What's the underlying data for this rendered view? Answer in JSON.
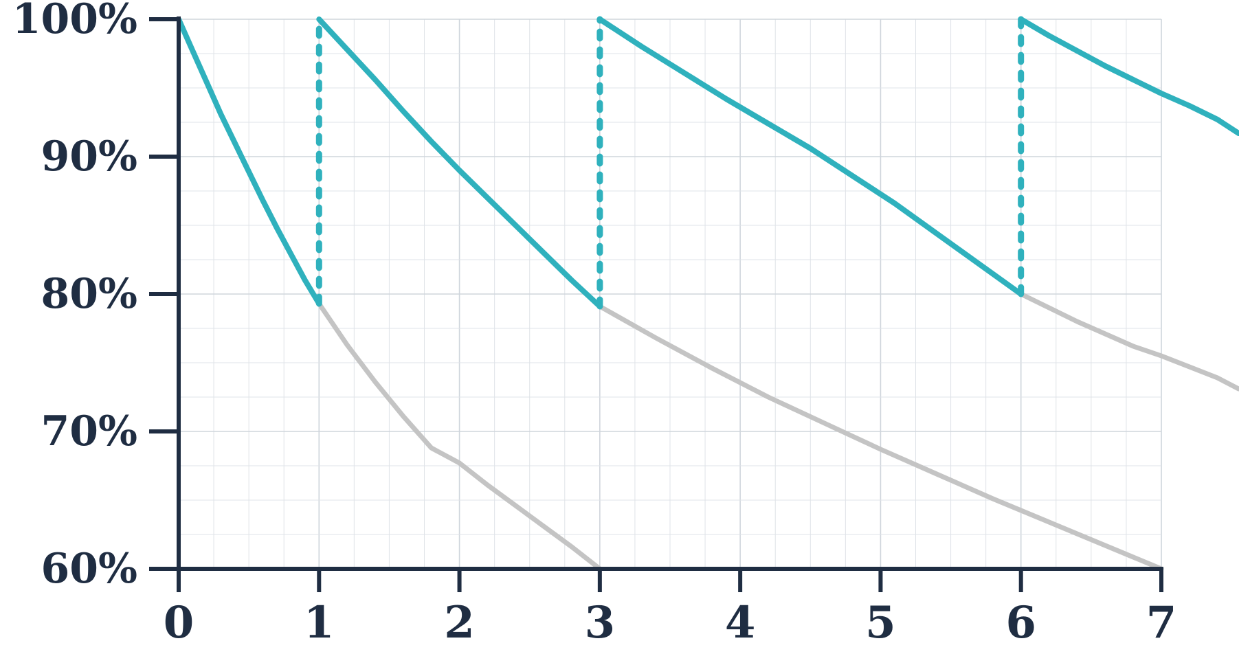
{
  "chart_data": {
    "type": "line",
    "title": "",
    "xlabel": "",
    "ylabel": "",
    "xlim": [
      0,
      7
    ],
    "ylim": [
      60,
      100
    ],
    "x_ticks": [
      0,
      1,
      2,
      3,
      4,
      5,
      6,
      7
    ],
    "x_tick_labels": [
      "0",
      "1",
      "2",
      "3",
      "4",
      "5",
      "6",
      "7"
    ],
    "y_ticks": [
      60,
      70,
      80,
      90,
      100
    ],
    "y_tick_labels": [
      "60%",
      "70%",
      "80%",
      "90%",
      "100%"
    ],
    "grid": true,
    "colors": {
      "active": "#2fb1bd",
      "decay": "#c4c4c4",
      "axis": "#1f2d42",
      "grid": "#dfe3e8"
    },
    "series": [
      {
        "style": "solid",
        "color": "#2fb1bd",
        "segments": [
          {
            "x": [
              0,
              0.1,
              0.2,
              0.3,
              0.4,
              0.5,
              0.6,
              0.7,
              0.8,
              0.9,
              1.0
            ],
            "y": [
              100,
              97.7,
              95.4,
              93.1,
              91.0,
              88.9,
              86.8,
              84.8,
              82.9,
              81.0,
              79.3
            ]
          },
          {
            "x": [
              1.0,
              1.2,
              1.4,
              1.6,
              1.8,
              2.0,
              2.2,
              2.4,
              2.6,
              2.8,
              3.0
            ],
            "y": [
              100,
              97.8,
              95.6,
              93.3,
              91.1,
              89.0,
              87.0,
              85.0,
              83.0,
              81.0,
              79.1
            ]
          },
          {
            "x": [
              3.0,
              3.3,
              3.6,
              3.9,
              4.2,
              4.5,
              4.8,
              5.1,
              5.4,
              5.7,
              6.0
            ],
            "y": [
              100,
              98.0,
              96.1,
              94.2,
              92.4,
              90.6,
              88.6,
              86.6,
              84.4,
              82.2,
              80.0
            ]
          },
          {
            "x": [
              6.0,
              6.2,
              6.4,
              6.6,
              6.8,
              7.0,
              7.2,
              7.4,
              7.55
            ],
            "y": [
              100,
              98.8,
              97.7,
              96.6,
              95.6,
              94.6,
              93.7,
              92.7,
              91.7
            ]
          }
        ]
      },
      {
        "style": "solid",
        "color": "#c4c4c4",
        "segments": [
          {
            "x": [
              1.0,
              1.2,
              1.4,
              1.6,
              1.8,
              2.0,
              2.2,
              2.4,
              2.6,
              2.8,
              3.0
            ],
            "y": [
              79.3,
              76.3,
              73.6,
              71.1,
              68.8,
              67.7,
              66.1,
              64.6,
              63.1,
              61.6,
              60.0
            ]
          },
          {
            "x": [
              3.0,
              3.4,
              3.8,
              4.2,
              4.6,
              5.0,
              5.4,
              5.8,
              6.2,
              6.6,
              7.0
            ],
            "y": [
              79.1,
              76.8,
              74.6,
              72.5,
              70.6,
              68.7,
              66.9,
              65.1,
              63.4,
              61.7,
              60.0
            ]
          },
          {
            "x": [
              6.0,
              6.2,
              6.4,
              6.6,
              6.8,
              7.0,
              7.2,
              7.4,
              7.55
            ],
            "y": [
              80.0,
              79.0,
              78.0,
              77.1,
              76.2,
              75.5,
              74.7,
              73.9,
              73.1
            ]
          }
        ]
      },
      {
        "style": "dashed",
        "color": "#2fb1bd",
        "segments": [
          {
            "x": [
              1,
              1
            ],
            "y": [
              79.3,
              100
            ]
          },
          {
            "x": [
              3,
              3
            ],
            "y": [
              79.1,
              100
            ]
          },
          {
            "x": [
              6,
              6
            ],
            "y": [
              80.0,
              100
            ]
          }
        ]
      }
    ]
  }
}
